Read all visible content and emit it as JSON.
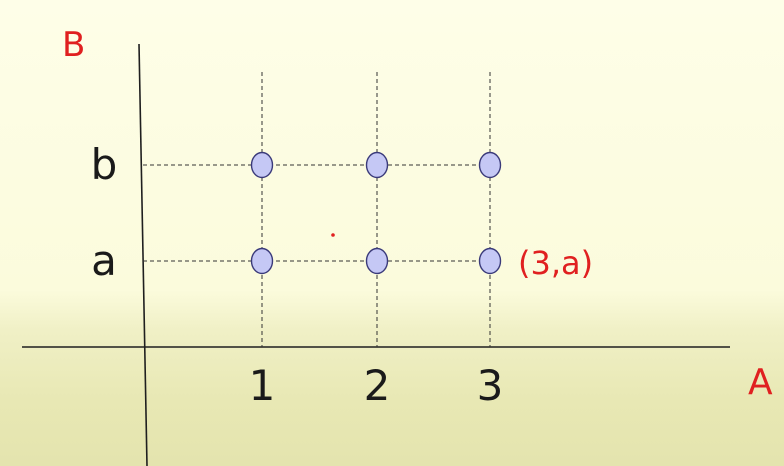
{
  "chart_data": {
    "type": "scatter",
    "title": "",
    "xlabel": "A",
    "ylabel": "B",
    "categories_x": [
      "1",
      "2",
      "3"
    ],
    "categories_y": [
      "a",
      "b"
    ],
    "points": [
      {
        "x": "1",
        "y": "b"
      },
      {
        "x": "2",
        "y": "b"
      },
      {
        "x": "3",
        "y": "b"
      },
      {
        "x": "1",
        "y": "a"
      },
      {
        "x": "2",
        "y": "a"
      },
      {
        "x": "3",
        "y": "a"
      }
    ],
    "annotations": [
      {
        "text": "(3,a)",
        "point": {
          "x": "3",
          "y": "a"
        }
      }
    ],
    "grid": "dashed guides through each point",
    "colors": {
      "point_fill": "#c5c8f5",
      "point_stroke": "#3a3a7a",
      "annotation": "#e02020",
      "axis_label": "#e02020",
      "tick_text": "#1a1a1a"
    }
  }
}
